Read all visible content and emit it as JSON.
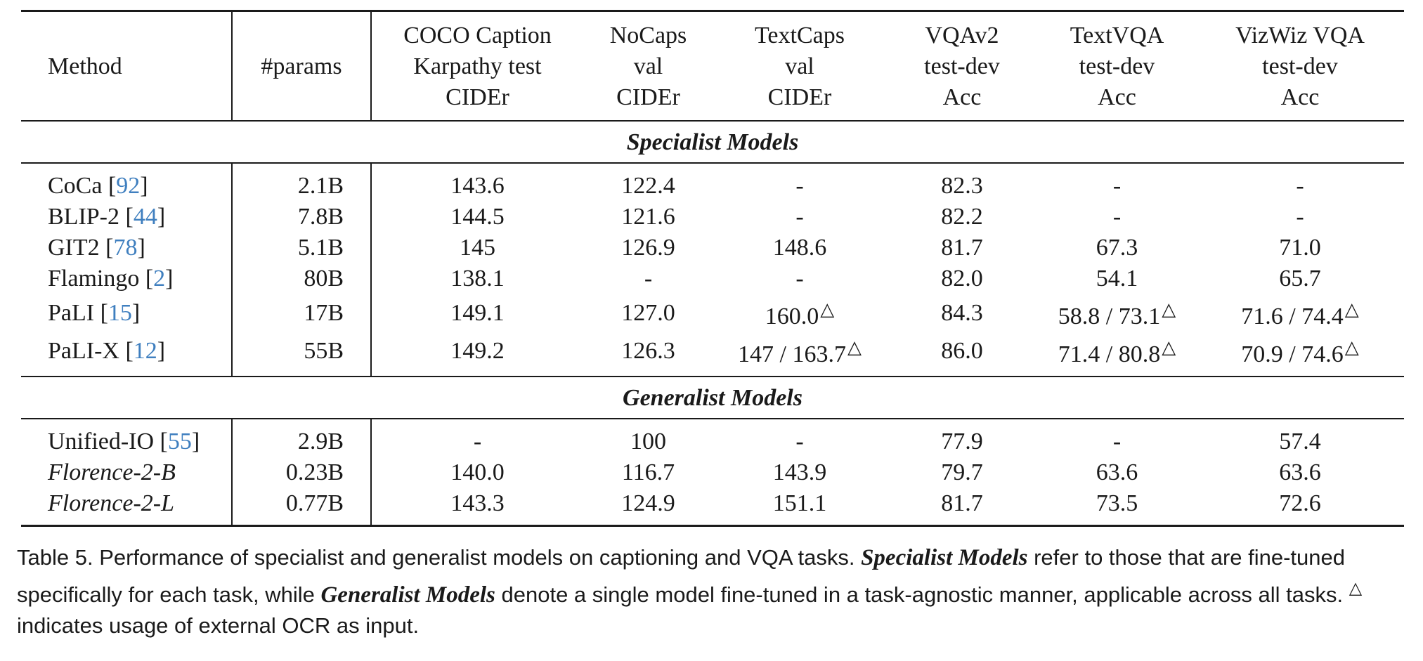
{
  "header": {
    "method": "Method",
    "params": "#params",
    "coco": [
      "COCO Caption",
      "Karpathy test",
      "CIDEr"
    ],
    "nocaps": [
      "NoCaps",
      "val",
      "CIDEr"
    ],
    "textcaps": [
      "TextCaps",
      "val",
      "CIDEr"
    ],
    "vqav2": [
      "VQAv2",
      "test-dev",
      "Acc"
    ],
    "textvqa": [
      "TextVQA",
      "test-dev",
      "Acc"
    ],
    "vizwiz": [
      "VizWiz VQA",
      "test-dev",
      "Acc"
    ]
  },
  "sections": {
    "specialist": "Specialist Models",
    "generalist": "Generalist Models"
  },
  "specialist_rows": [
    {
      "name": "CoCa [",
      "ref": "92",
      "close": "]",
      "params": "2.1B",
      "coco": "143.6",
      "nocaps": "122.4",
      "textcaps": "-",
      "vqav2": "82.3",
      "textvqa": "-",
      "vizwiz": "-"
    },
    {
      "name": "BLIP-2 [",
      "ref": "44",
      "close": "]",
      "params": "7.8B",
      "coco": "144.5",
      "nocaps": "121.6",
      "textcaps": "-",
      "vqav2": "82.2",
      "textvqa": "-",
      "vizwiz": "-"
    },
    {
      "name": "GIT2 [",
      "ref": "78",
      "close": "]",
      "params": "5.1B",
      "coco": "145",
      "nocaps": "126.9",
      "textcaps": "148.6",
      "vqav2": "81.7",
      "textvqa": "67.3",
      "vizwiz": "71.0"
    },
    {
      "name": "Flamingo [",
      "ref": "2",
      "close": "]",
      "params": "80B",
      "coco": "138.1",
      "nocaps": "-",
      "textcaps": "-",
      "vqav2": "82.0",
      "textvqa": "54.1",
      "vizwiz": "65.7"
    },
    {
      "name": "PaLI [",
      "ref": "15",
      "close": "]",
      "params": "17B",
      "coco": "149.1",
      "nocaps": "127.0",
      "textcaps": "160.0",
      "vqav2": "84.3",
      "textvqa": "58.8 / 73.1",
      "vizwiz": "71.6 / 74.4"
    },
    {
      "name": "PaLI-X [",
      "ref": "12",
      "close": "]",
      "params": "55B",
      "coco": "149.2",
      "nocaps": "126.3",
      "textcaps": "147 / 163.7",
      "vqav2": "86.0",
      "textvqa": "71.4 / 80.8",
      "vizwiz": "70.9 / 74.6"
    }
  ],
  "generalist_rows": [
    {
      "name": "Unified-IO [",
      "ref": "55",
      "close": "]",
      "params": "2.9B",
      "coco": "-",
      "nocaps": "100",
      "textcaps": "-",
      "vqav2": "77.9",
      "textvqa": "-",
      "vizwiz": "57.4"
    },
    {
      "name": "Florence-2-B",
      "ref": "",
      "close": "",
      "params": "0.23B",
      "coco": "140.0",
      "nocaps": "116.7",
      "textcaps": "143.9",
      "vqav2": "79.7",
      "textvqa": "63.6",
      "vizwiz": "63.6"
    },
    {
      "name": "Florence-2-L",
      "ref": "",
      "close": "",
      "params": "0.77B",
      "coco": "143.3",
      "nocaps": "124.9",
      "textcaps": "151.1",
      "vqav2": "81.7",
      "textvqa": "73.5",
      "vizwiz": "72.6"
    }
  ],
  "ocr_marker": "△",
  "caption": {
    "part1": "Table 5. Performance of specialist and generalist models on captioning and VQA tasks. ",
    "bold1": "Specialist Models",
    "part2": " refer to those that are fine-tuned specifically for each task, while ",
    "bold2": "Generalist Models",
    "part3": " denote a single model fine-tuned in a task-agnostic manner, applicable across all tasks. ",
    "marker": "△",
    "part4": " indicates usage of external OCR as input."
  }
}
